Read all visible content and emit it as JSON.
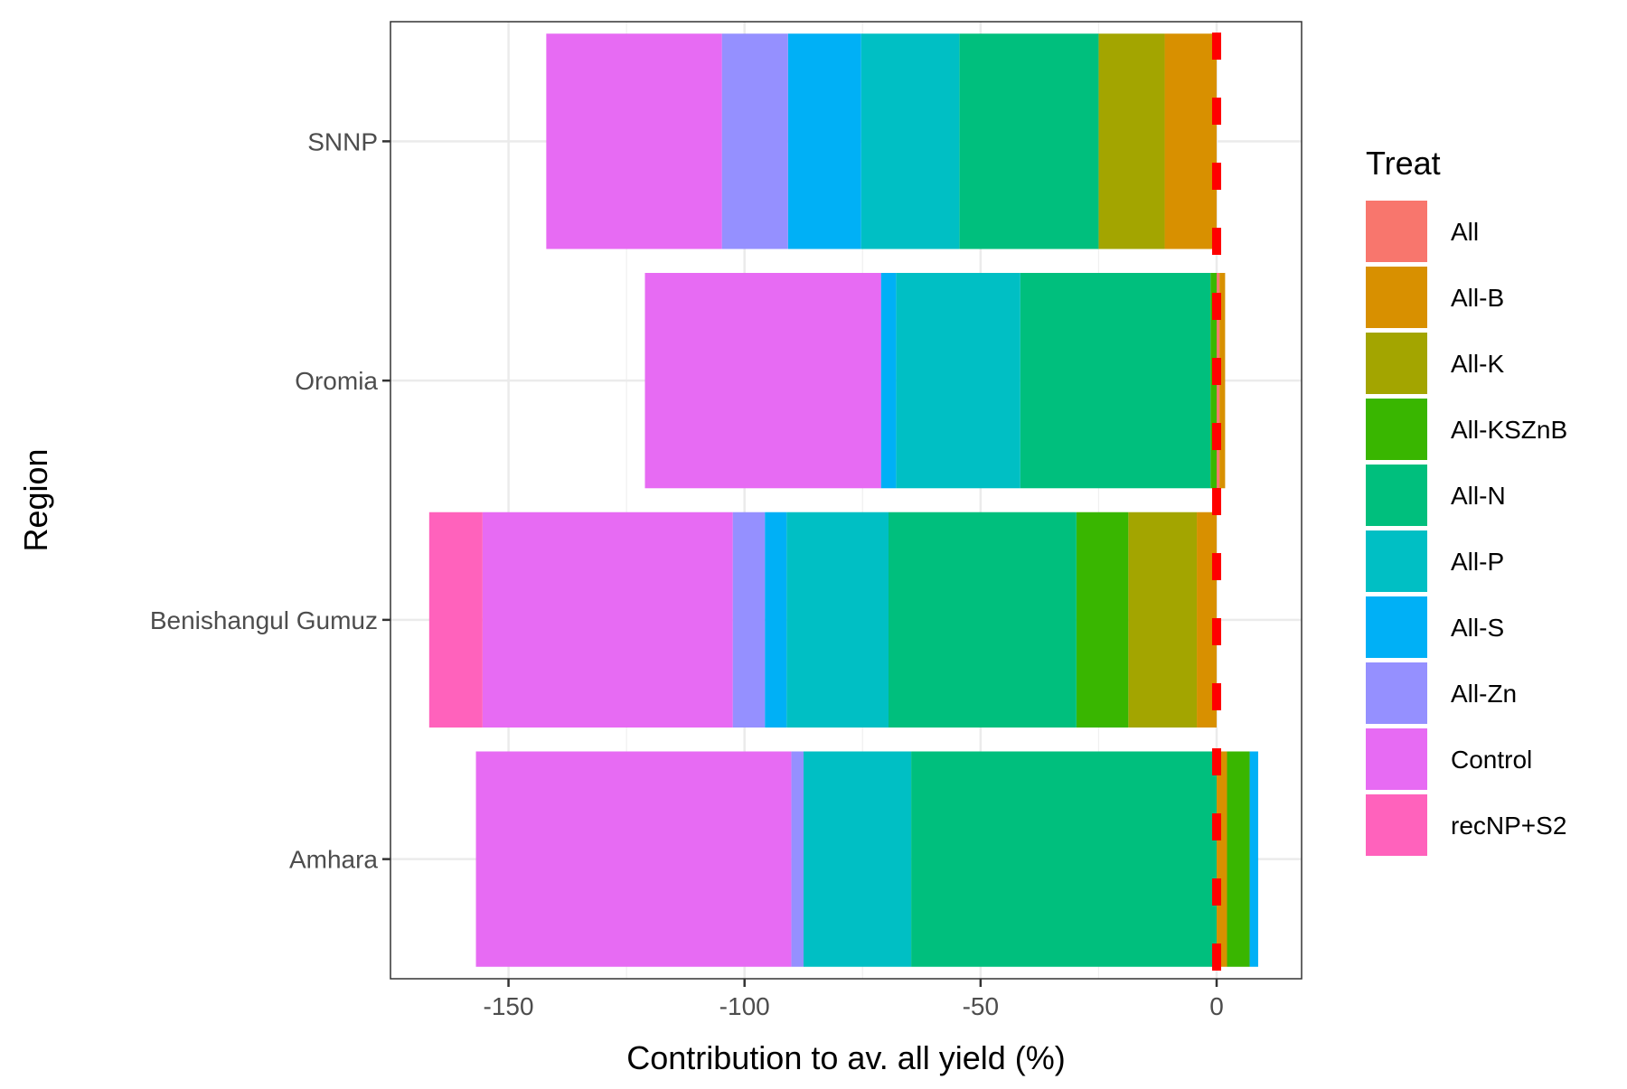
{
  "chart_data": {
    "type": "bar",
    "orientation": "horizontal",
    "stacked": true,
    "title": "",
    "xlabel": "Contribution to av. all yield (%)",
    "ylabel": "Region",
    "xlim": [
      -175,
      18
    ],
    "x_ticks": [
      -150,
      -100,
      -50,
      0
    ],
    "x_tick_labels": [
      "-150",
      "-100",
      "-50",
      "0"
    ],
    "categories": [
      "SNNP",
      "Oromia",
      "Benishangul Gumuz",
      "Amhara"
    ],
    "grid": true,
    "reference_line": {
      "x": 0,
      "style": "dashed",
      "color": "#FF0000"
    },
    "legend": {
      "title": "Treat",
      "placement": "right",
      "entries": [
        "All",
        "All-B",
        "All-K",
        "All-KSZnB",
        "All-N",
        "All-P",
        "All-S",
        "All-Zn",
        "Control",
        "recNP+S2"
      ]
    },
    "series": [
      {
        "name": "All",
        "color": "#F8766D",
        "values": [
          0,
          0.6,
          0,
          0
        ]
      },
      {
        "name": "All-B",
        "color": "#D89000",
        "values": [
          -11,
          1.2,
          -4.2,
          2.2
        ]
      },
      {
        "name": "All-K",
        "color": "#A3A500",
        "values": [
          -14,
          0,
          -14.5,
          0
        ]
      },
      {
        "name": "All-KSZnB",
        "color": "#39B600",
        "values": [
          0,
          -1.3,
          -11,
          4.8
        ]
      },
      {
        "name": "All-N",
        "color": "#00BF7D",
        "values": [
          -29.5,
          -40.3,
          -39.8,
          -64.7
        ]
      },
      {
        "name": "All-P",
        "color": "#00BFC4",
        "values": [
          -20.8,
          -26.3,
          -21.6,
          -22.8
        ]
      },
      {
        "name": "All-S",
        "color": "#00B0F6",
        "values": [
          -15.5,
          -3.2,
          -4.6,
          1.8
        ]
      },
      {
        "name": "All-Zn",
        "color": "#9590FF",
        "values": [
          -14,
          0,
          -6.8,
          -2.6
        ]
      },
      {
        "name": "Control",
        "color": "#E76BF3",
        "values": [
          -37.2,
          -50,
          -53,
          -66.8
        ]
      },
      {
        "name": "recNP+S2",
        "color": "#FF62BC",
        "values": [
          0,
          0,
          -11.3,
          0
        ]
      }
    ]
  }
}
